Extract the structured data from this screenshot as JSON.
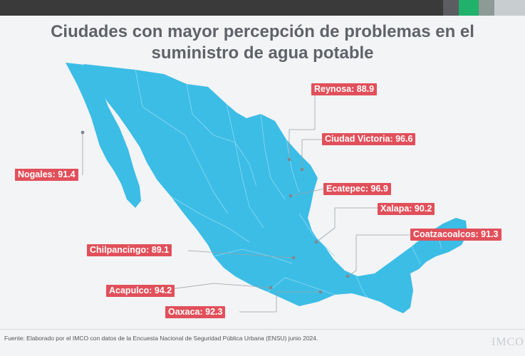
{
  "title": {
    "line1": "Ciudades con mayor percepción de problemas en el",
    "line2": "suministro de agua potable"
  },
  "cities": [
    {
      "name": "Reynosa",
      "value": "88.9"
    },
    {
      "name": "Ciudad Victoria",
      "value": "96.6"
    },
    {
      "name": "Nogales",
      "value": "91.4"
    },
    {
      "name": "Ecatepec",
      "value": "96.9"
    },
    {
      "name": "Xalapa",
      "value": "90.2"
    },
    {
      "name": "Coatzacoalcos",
      "value": "91.3"
    },
    {
      "name": "Chilpancingo",
      "value": "89.1"
    },
    {
      "name": "Acapulco",
      "value": "94.2"
    },
    {
      "name": "Oaxaca",
      "value": "92.3"
    }
  ],
  "labels": {
    "reynosa": "Reynosa: 88.9",
    "ciudad_victoria": "Ciudad Victoria: 96.6",
    "nogales": "Nogales: 91.4",
    "ecatepec": "Ecatepec: 96.9",
    "xalapa": "Xalapa: 90.2",
    "coatzacoalcos": "Coatzacoalcos: 91.3",
    "chilpancingo": "Chilpancingo: 89.1",
    "acapulco": "Acapulco: 94.2",
    "oaxaca": "Oaxaca: 92.3"
  },
  "footer": "Fuente: Elaborado por el IMCO con datos de la Encuesta Nacional de Seguridad Pública Urbana (ENSU) junio 2024.",
  "brand": "IMCO",
  "colors": {
    "map_fill": "#3bbde6",
    "label_bg": "#e1505a",
    "title": "#5f6368"
  }
}
